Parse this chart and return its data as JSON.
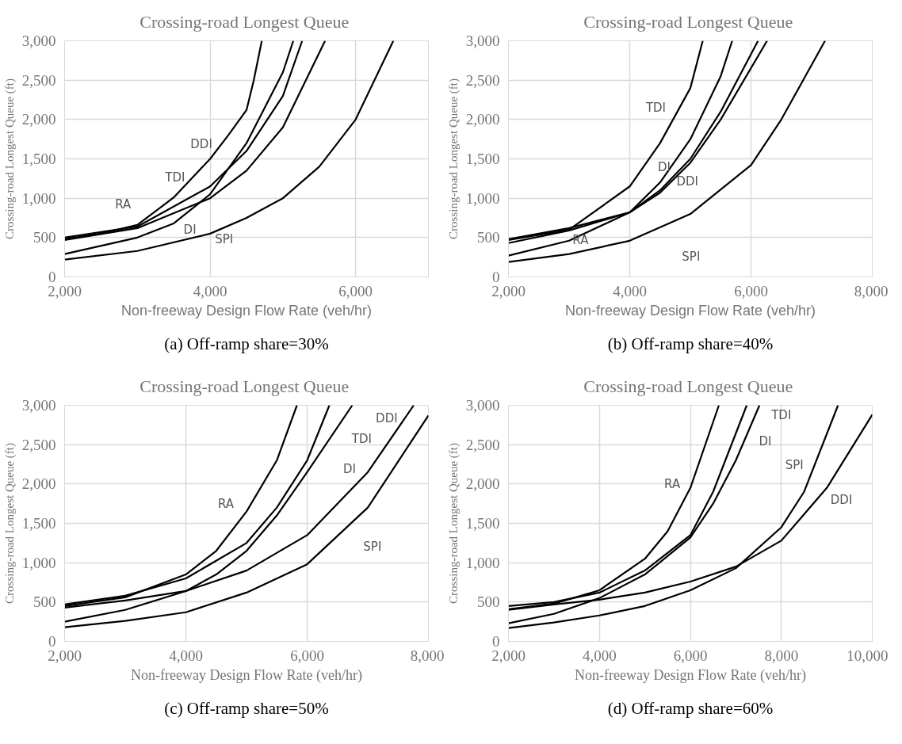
{
  "chart_data": [
    {
      "type": "line",
      "title": "Crossing-road  Longest Queue",
      "xlabel": "Non-freeway Design Flow Rate (veh/hr)",
      "ylabel": "Crossing-road Longest Queue (ft)",
      "xlim": [
        2000,
        7000
      ],
      "ylim": [
        0,
        3000
      ],
      "xticks": [
        {
          "value": 2000,
          "label": "2,000"
        },
        {
          "value": 4000,
          "label": "4,000"
        },
        {
          "value": 6000,
          "label": "6,000"
        }
      ],
      "yticks": [
        0,
        500,
        {
          "value": 1000,
          "label": "1,000"
        },
        {
          "value": 1500,
          "label": "1,500"
        },
        {
          "value": 2000,
          "label": "2,000"
        },
        {
          "value": 2500,
          "label": "2,500"
        },
        {
          "value": 3000,
          "label": "3,000"
        }
      ],
      "grid": true,
      "line_style": "solid",
      "series": [
        {
          "color": "#000000",
          "x": [
            2000,
            2500,
            3000,
            3500,
            4000,
            4250,
            4500,
            4600,
            4710
          ],
          "values": [
            480,
            550,
            660,
            1010,
            1500,
            1800,
            2120,
            2500,
            3000
          ]
        },
        {
          "color": "#000000",
          "x": [
            2000,
            3000,
            4000,
            4500,
            5000,
            5580
          ],
          "values": [
            470,
            620,
            1000,
            1350,
            1900,
            3000
          ]
        },
        {
          "color": "#000000",
          "x": [
            2000,
            3000,
            4000,
            4500,
            5000,
            5265
          ],
          "values": [
            500,
            640,
            1150,
            1600,
            2300,
            3000
          ]
        },
        {
          "color": "#000000",
          "x": [
            2000,
            3000,
            3500,
            4000,
            4500,
            5000,
            5143
          ],
          "values": [
            290,
            500,
            680,
            1050,
            1700,
            2600,
            3000
          ]
        },
        {
          "color": "#000000",
          "x": [
            2000,
            3000,
            4000,
            4500,
            5000,
            5500,
            6000,
            6518
          ],
          "values": [
            220,
            330,
            550,
            750,
            1000,
            1400,
            2000,
            3000
          ]
        }
      ],
      "annotations": [
        "DDI",
        "TDI",
        "RA",
        "DI",
        "SPI",
        "(a) Off-ramp share=30%"
      ]
    },
    {
      "type": "line",
      "title": "Crossing-road  Longest Queue",
      "xlabel": "Non-freeway Design Flow Rate (veh/hr)",
      "ylabel": "Crossing-road Longest Queue (ft)",
      "xlim": [
        2000,
        8000
      ],
      "ylim": [
        0,
        3000
      ],
      "xticks": [
        {
          "value": 2000,
          "label": "2,000"
        },
        {
          "value": 4000,
          "label": "4,000"
        },
        {
          "value": 6000,
          "label": "6,000"
        },
        {
          "value": 8000,
          "label": "8,000"
        }
      ],
      "yticks": [
        0,
        500,
        {
          "value": 1000,
          "label": "1,000"
        },
        {
          "value": 1500,
          "label": "1,500"
        },
        {
          "value": 2000,
          "label": "2,000"
        },
        {
          "value": 2500,
          "label": "2,500"
        },
        {
          "value": 3000,
          "label": "3,000"
        }
      ],
      "grid": true,
      "line_style": "solid",
      "series": [
        {
          "color": "#000000",
          "x": [
            2000,
            3000,
            4000,
            4500,
            5000,
            5204
          ],
          "values": [
            470,
            600,
            1150,
            1700,
            2400,
            3000
          ]
        },
        {
          "color": "#000000",
          "x": [
            2000,
            3000,
            4000,
            4500,
            5000,
            5500,
            5690
          ],
          "values": [
            270,
            460,
            820,
            1200,
            1750,
            2550,
            3000
          ]
        },
        {
          "color": "#000000",
          "x": [
            2000,
            3000,
            4000,
            4500,
            5000,
            5500,
            6116
          ],
          "values": [
            480,
            620,
            820,
            1100,
            1500,
            2100,
            3000
          ]
        },
        {
          "color": "#000000",
          "x": [
            2000,
            3000,
            4000,
            4500,
            5000,
            5500,
            6265
          ],
          "values": [
            430,
            590,
            820,
            1070,
            1450,
            2000,
            3000
          ]
        },
        {
          "color": "#000000",
          "x": [
            2000,
            3000,
            4000,
            5000,
            6000,
            6500,
            7221
          ],
          "values": [
            190,
            290,
            460,
            800,
            1420,
            2000,
            3000
          ]
        }
      ],
      "annotations": [
        "TDI",
        "DI",
        "DDI",
        "RA",
        "SPI",
        "(b) Off-ramp share=40%"
      ]
    },
    {
      "type": "line",
      "title": "Crossing-road  Longest Queue",
      "xlabel": "Non-freeway Design Flow Rate (veh/hr)",
      "ylabel": "Crossing-road Longest Queue (ft)",
      "xlim": [
        2000,
        8000
      ],
      "ylim": [
        0,
        3000
      ],
      "xticks": [
        {
          "value": 2000,
          "label": "2,000"
        },
        {
          "value": 4000,
          "label": "4,000"
        },
        {
          "value": 6000,
          "label": "6,000"
        },
        {
          "value": 8000,
          "label": "8,000"
        }
      ],
      "yticks": [
        0,
        500,
        {
          "value": 1000,
          "label": "1,000"
        },
        {
          "value": 1500,
          "label": "1,500"
        },
        {
          "value": 2000,
          "label": "2,000"
        },
        {
          "value": 2500,
          "label": "2,500"
        },
        {
          "value": 3000,
          "label": "3,000"
        }
      ],
      "grid": true,
      "line_style": "solid",
      "series": [
        {
          "color": "#000000",
          "x": [
            2000,
            3000,
            4000,
            4500,
            5000,
            5500,
            5832
          ],
          "values": [
            450,
            560,
            850,
            1150,
            1650,
            2300,
            3000
          ]
        },
        {
          "color": "#000000",
          "x": [
            2000,
            3000,
            4000,
            5000,
            5500,
            6000,
            6367
          ],
          "values": [
            470,
            580,
            800,
            1250,
            1700,
            2300,
            3000
          ]
        },
        {
          "color": "#000000",
          "x": [
            2000,
            3000,
            4000,
            4500,
            5000,
            5500,
            6000,
            6745
          ],
          "values": [
            250,
            400,
            640,
            850,
            1150,
            1600,
            2150,
            3000
          ]
        },
        {
          "color": "#000000",
          "x": [
            2000,
            3000,
            4000,
            5000,
            6000,
            7000,
            7758
          ],
          "values": [
            430,
            520,
            640,
            900,
            1350,
            2150,
            3000
          ]
        },
        {
          "color": "#000000",
          "x": [
            2000,
            3000,
            4000,
            5000,
            6000,
            7000,
            8000
          ],
          "values": [
            180,
            260,
            370,
            620,
            980,
            1700,
            2870
          ]
        }
      ],
      "annotations": [
        "TDI",
        "DDI",
        "DI",
        "RA",
        "SPI",
        "(c) Off-ramp share=50%"
      ]
    },
    {
      "type": "line",
      "title": "Crossing-road  Longest Queue",
      "xlabel": "Non-freeway Design Flow Rate (veh/hr)",
      "ylabel": "Crossing-road Longest Queue (ft)",
      "xlim": [
        2000,
        10000
      ],
      "ylim": [
        0,
        3000
      ],
      "xticks": [
        {
          "value": 2000,
          "label": "2,000"
        },
        {
          "value": 4000,
          "label": "4,000"
        },
        {
          "value": 6000,
          "label": "6,000"
        },
        {
          "value": 8000,
          "label": "8,000"
        },
        {
          "value": 10000,
          "label": "10,000"
        }
      ],
      "yticks": [
        0,
        500,
        {
          "value": 1000,
          "label": "1,000"
        },
        {
          "value": 1500,
          "label": "1,500"
        },
        {
          "value": 2000,
          "label": "2,000"
        },
        {
          "value": 2500,
          "label": "2,500"
        },
        {
          "value": 3000,
          "label": "3,000"
        }
      ],
      "grid": true,
      "line_style": "solid",
      "series": [
        {
          "color": "#000000",
          "x": [
            2000,
            3000,
            4000,
            5000,
            5500,
            6000,
            6627
          ],
          "values": [
            410,
            480,
            650,
            1050,
            1400,
            1950,
            3000
          ]
        },
        {
          "color": "#000000",
          "x": [
            2000,
            3000,
            4000,
            5000,
            6000,
            6500,
            7240
          ],
          "values": [
            450,
            500,
            620,
            900,
            1350,
            1900,
            3000
          ]
        },
        {
          "color": "#000000",
          "x": [
            2000,
            3000,
            4000,
            5000,
            6000,
            6500,
            7000,
            7520
          ],
          "values": [
            230,
            350,
            550,
            850,
            1320,
            1750,
            2300,
            3000
          ]
        },
        {
          "color": "#000000",
          "x": [
            2000,
            3000,
            4000,
            5000,
            6000,
            7000,
            8000,
            8500,
            9247
          ],
          "values": [
            170,
            240,
            330,
            450,
            650,
            930,
            1450,
            1900,
            3000
          ]
        },
        {
          "color": "#000000",
          "x": [
            2000,
            3000,
            4000,
            5000,
            6000,
            7000,
            8000,
            9000,
            10000
          ],
          "values": [
            400,
            470,
            530,
            620,
            760,
            950,
            1280,
            1950,
            2880
          ]
        }
      ],
      "annotations": [
        "TDI",
        "DI",
        "SPI",
        "RA",
        "DDI",
        "(d) Off-ramp share=60%"
      ]
    }
  ]
}
